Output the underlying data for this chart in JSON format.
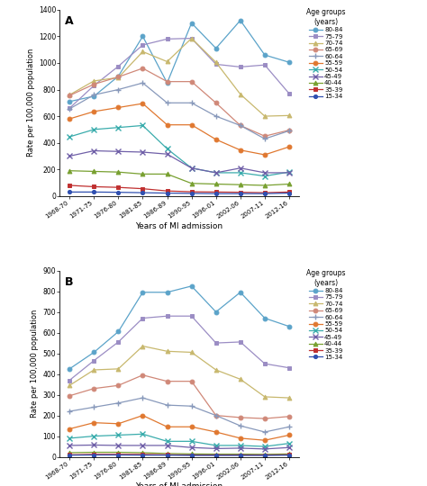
{
  "x_labels": [
    "1968-70",
    "1971-75",
    "1976-80",
    "1981-85",
    "1986-89",
    "1990-95",
    "1996-01",
    "2002-06",
    "2007-11",
    "2012-16"
  ],
  "age_groups": [
    "80-84",
    "75-79",
    "70-74",
    "65-69",
    "60-64",
    "55-59",
    "50-54",
    "45-49",
    "40-44",
    "35-39",
    "15-34"
  ],
  "colors": {
    "80-84": "#5ba3c9",
    "75-79": "#9b8dc4",
    "70-74": "#c8b86e",
    "65-69": "#d08878",
    "60-64": "#8899bb",
    "55-59": "#e07830",
    "50-54": "#3aacac",
    "45-49": "#7060a8",
    "40-44": "#78a030",
    "35-39": "#c03030",
    "15-34": "#3050b0"
  },
  "markers": {
    "80-84": "o",
    "75-79": "s",
    "70-74": "^",
    "65-69": "o",
    "60-64": "+",
    "55-59": "o",
    "50-54": "x",
    "45-49": "x",
    "40-44": "^",
    "35-39": "s",
    "15-34": "o"
  },
  "panel_A": {
    "80-84": [
      710,
      750,
      900,
      1200,
      850,
      1300,
      1110,
      1320,
      1060,
      1005
    ],
    "75-79": [
      660,
      830,
      975,
      1135,
      1180,
      1185,
      990,
      970,
      985,
      770
    ],
    "70-74": [
      760,
      865,
      890,
      1085,
      1010,
      1185,
      1005,
      765,
      600,
      605
    ],
    "65-69": [
      755,
      840,
      895,
      960,
      860,
      860,
      700,
      530,
      450,
      495
    ],
    "60-64": [
      655,
      760,
      800,
      850,
      700,
      700,
      600,
      530,
      430,
      490
    ],
    "55-59": [
      580,
      635,
      665,
      695,
      535,
      535,
      425,
      345,
      310,
      370
    ],
    "50-54": [
      445,
      500,
      515,
      530,
      355,
      210,
      175,
      175,
      150,
      180
    ],
    "45-49": [
      300,
      340,
      335,
      330,
      315,
      210,
      175,
      210,
      175,
      175
    ],
    "40-44": [
      190,
      185,
      180,
      165,
      165,
      95,
      90,
      85,
      80,
      90
    ],
    "35-39": [
      80,
      70,
      65,
      55,
      38,
      32,
      30,
      28,
      25,
      30
    ],
    "15-34": [
      30,
      30,
      28,
      25,
      22,
      20,
      18,
      18,
      18,
      22
    ]
  },
  "panel_B": {
    "80-84": [
      425,
      505,
      605,
      795,
      795,
      825,
      700,
      795,
      670,
      630
    ],
    "75-79": [
      370,
      465,
      555,
      670,
      680,
      680,
      550,
      555,
      450,
      430
    ],
    "70-74": [
      345,
      420,
      425,
      535,
      510,
      505,
      420,
      375,
      290,
      285
    ],
    "65-69": [
      295,
      330,
      345,
      395,
      365,
      365,
      200,
      190,
      185,
      195
    ],
    "60-64": [
      220,
      240,
      260,
      285,
      250,
      245,
      200,
      150,
      120,
      145
    ],
    "55-59": [
      135,
      165,
      160,
      200,
      145,
      145,
      120,
      90,
      80,
      105
    ],
    "50-54": [
      90,
      100,
      105,
      110,
      75,
      75,
      55,
      55,
      50,
      65
    ],
    "45-49": [
      55,
      57,
      55,
      55,
      55,
      45,
      40,
      42,
      38,
      45
    ],
    "40-44": [
      20,
      22,
      22,
      20,
      16,
      14,
      13,
      13,
      12,
      14
    ],
    "35-39": [
      10,
      12,
      12,
      12,
      10,
      9,
      9,
      9,
      9,
      10
    ],
    "15-34": [
      8,
      9,
      9,
      8,
      8,
      7,
      7,
      7,
      7,
      8
    ]
  },
  "ylabel": "Rate per 100,000 population",
  "xlabel": "Years of MI admission",
  "legend_title": "Age groups\n(years)",
  "ylim_A": [
    0,
    1400
  ],
  "ylim_B": [
    0,
    900
  ],
  "yticks_A": [
    0,
    200,
    400,
    600,
    800,
    1000,
    1200,
    1400
  ],
  "yticks_B": [
    0,
    100,
    200,
    300,
    400,
    500,
    600,
    700,
    800,
    900
  ]
}
